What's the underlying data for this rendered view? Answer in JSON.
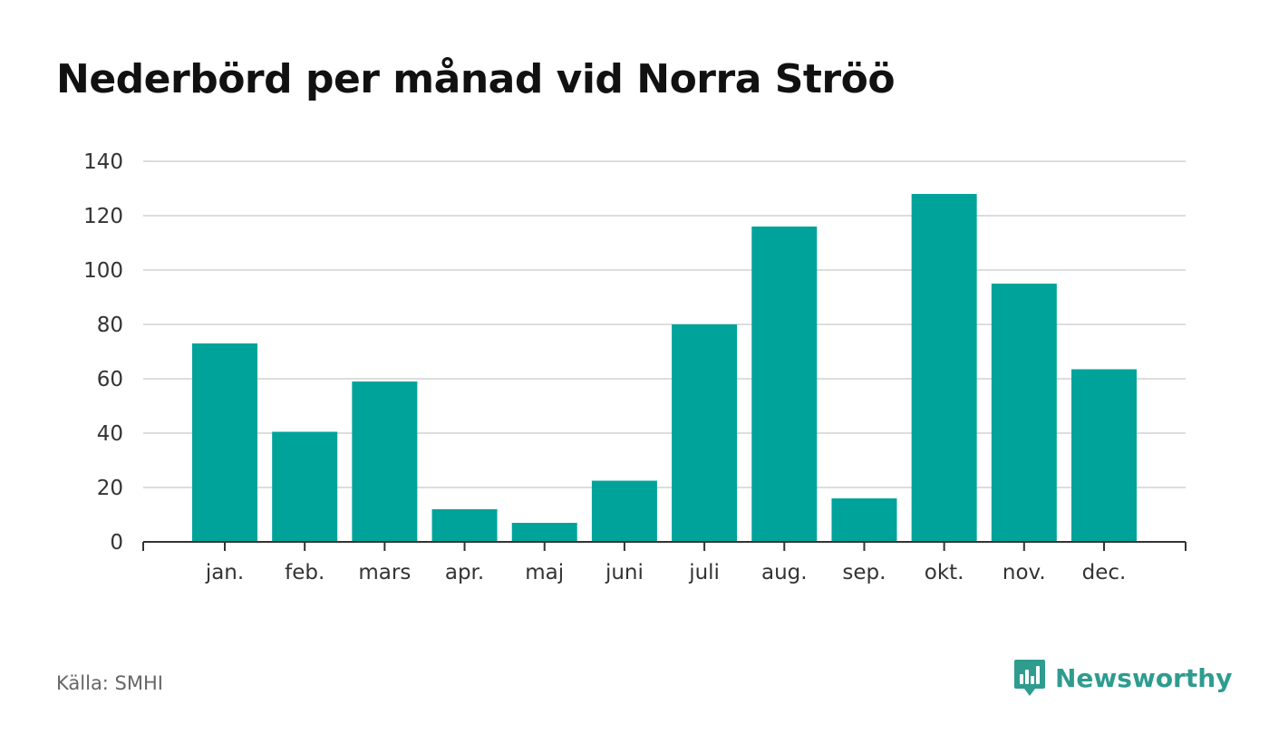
{
  "title": "Nederbörd per månad vid Norra Ströö",
  "source": "Källa: SMHI",
  "brand": {
    "name": "Newsworthy",
    "icon": "newsworthy-logo-icon",
    "color": "#2e9c8f"
  },
  "colors": {
    "bar": "#00a39a",
    "grid": "#dddddd",
    "axis": "#333333"
  },
  "chart_data": {
    "type": "bar",
    "title": "Nederbörd per månad vid Norra Ströö",
    "categories": [
      "jan.",
      "feb.",
      "mars",
      "apr.",
      "maj",
      "juni",
      "juli",
      "aug.",
      "sep.",
      "okt.",
      "nov.",
      "dec."
    ],
    "values": [
      73,
      40.5,
      59,
      12,
      7,
      22.5,
      80,
      116,
      16,
      128,
      95,
      63.5
    ],
    "ylim": [
      0,
      140
    ],
    "yticks": [
      0,
      20,
      40,
      60,
      80,
      100,
      120,
      140
    ],
    "xlabel": "",
    "ylabel": "",
    "grid": true,
    "legend": "none"
  }
}
